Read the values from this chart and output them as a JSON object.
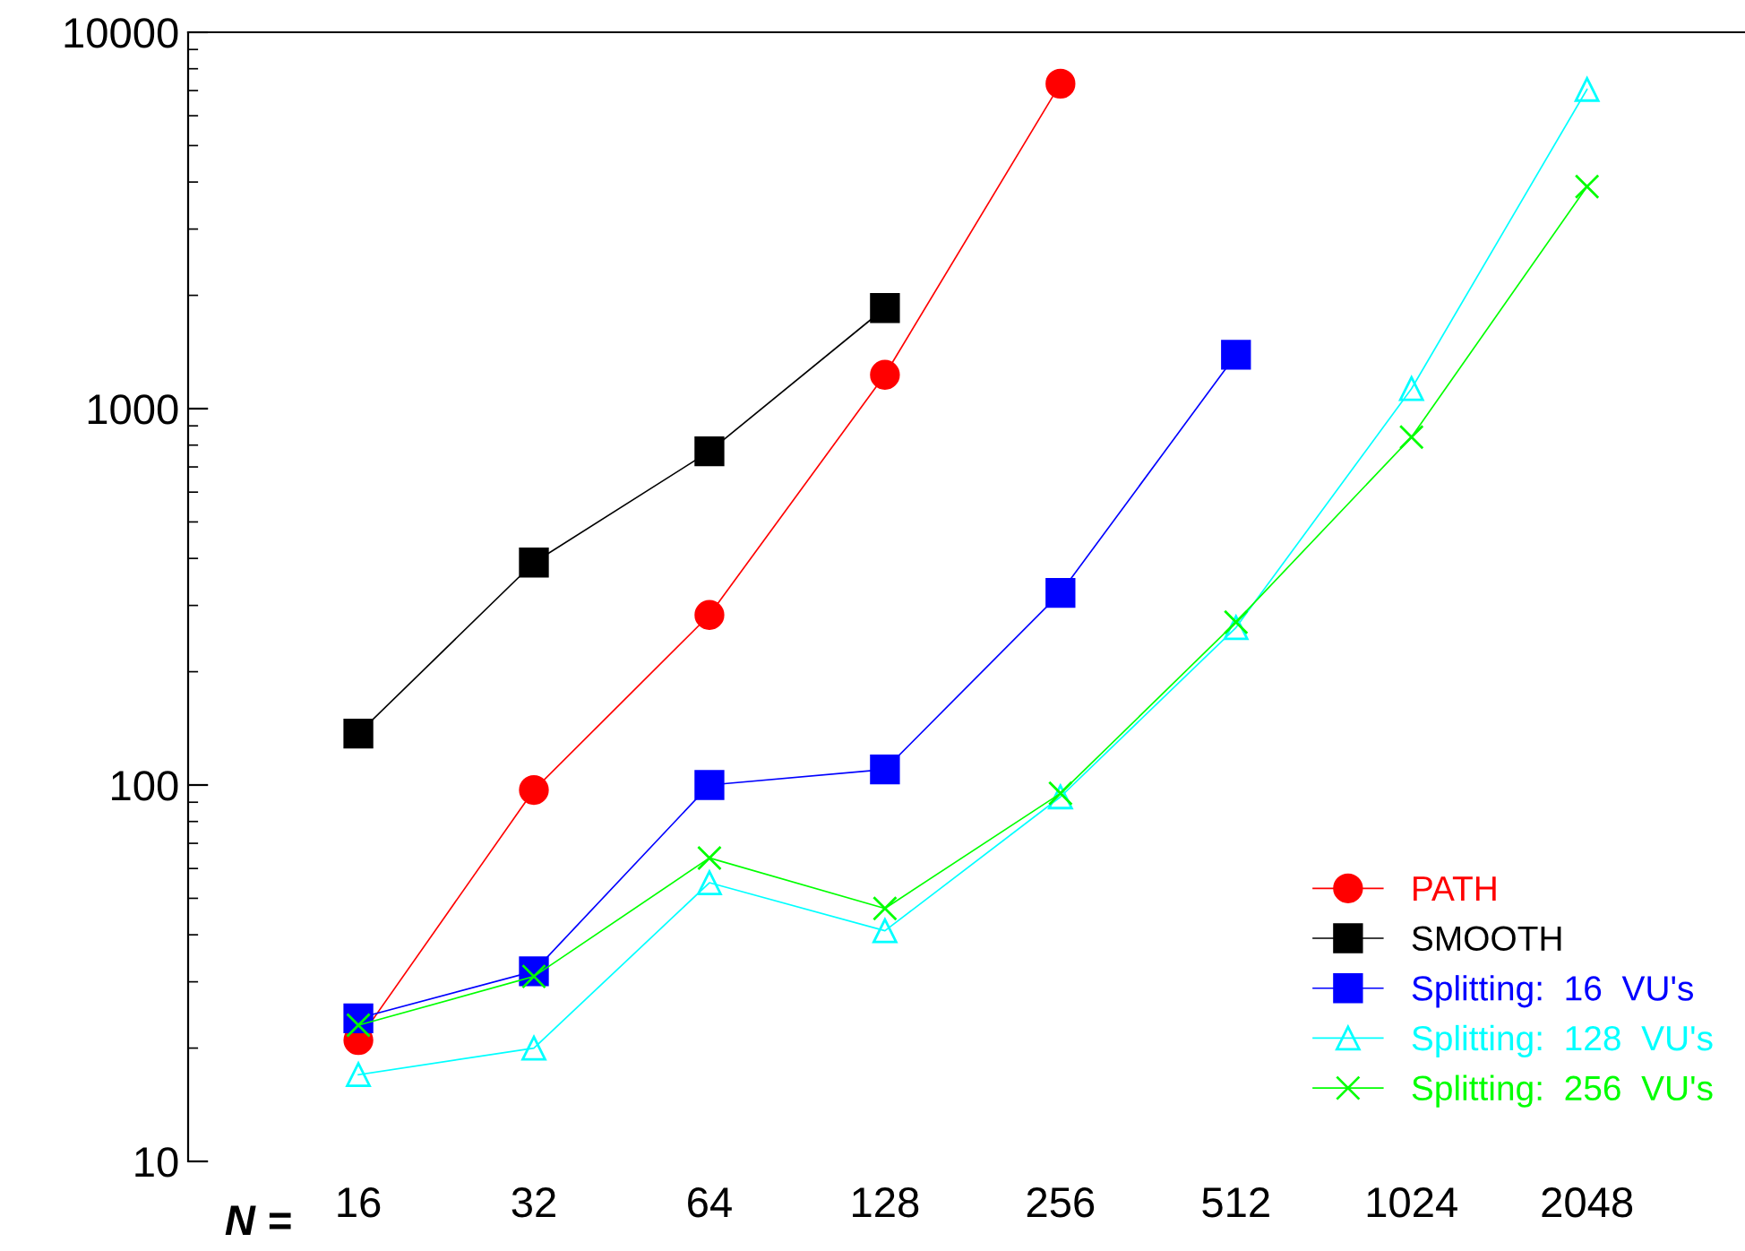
{
  "chart_data": {
    "type": "line",
    "xlabel": "N =",
    "categories": [
      "16",
      "32",
      "64",
      "128",
      "256",
      "512",
      "1024",
      "2048"
    ],
    "series": [
      {
        "name": "PATH",
        "color": "#ff0000",
        "marker": "circle",
        "values": [
          21,
          97,
          283,
          1230,
          7300,
          null,
          null,
          null
        ]
      },
      {
        "name": "SMOOTH",
        "color": "#000000",
        "marker": "square",
        "values": [
          137,
          390,
          770,
          1850,
          null,
          null,
          null,
          null
        ]
      },
      {
        "name": "Splitting:  16  VU's",
        "color": "#0000ff",
        "marker": "square",
        "values": [
          24,
          32,
          100,
          110,
          324,
          1390,
          null,
          null
        ]
      },
      {
        "name": "Splitting:  128  VU's",
        "color": "#00ffff",
        "marker": "triangle",
        "values": [
          17,
          20,
          55,
          41,
          93,
          262,
          1130,
          7050
        ]
      },
      {
        "name": "Splitting:  256  VU's",
        "color": "#00ff00",
        "marker": "cross",
        "values": [
          23,
          31,
          64,
          47,
          95,
          271,
          840,
          3890
        ]
      }
    ],
    "log": "y",
    "ylim": [
      10,
      10000
    ],
    "yticks": [
      10,
      100,
      1000,
      10000
    ],
    "grid": false,
    "legend": "bottom right"
  }
}
